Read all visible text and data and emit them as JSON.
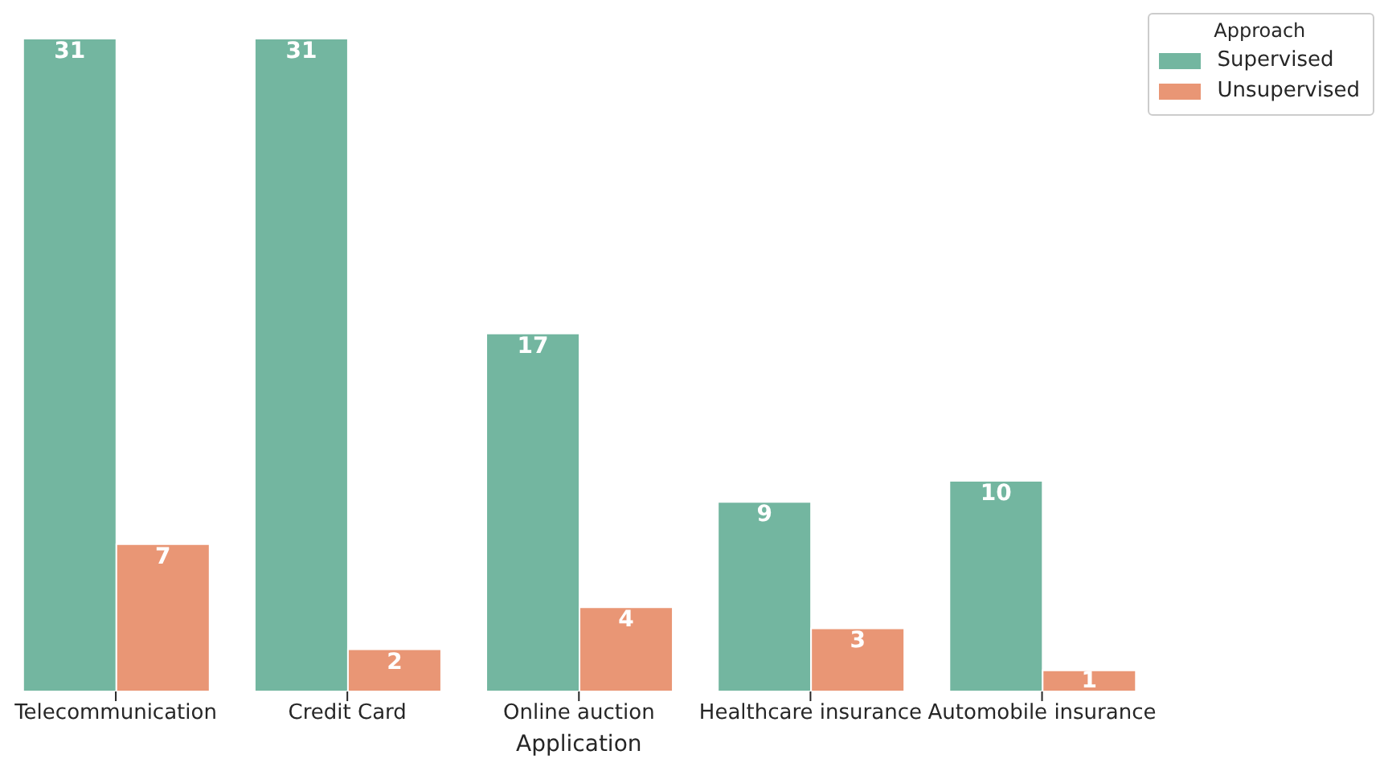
{
  "chart_data": {
    "type": "bar",
    "xlabel": "Application",
    "legend_title": "Approach",
    "categories": [
      "Telecommunication",
      "Credit Card",
      "Online auction",
      "Healthcare insurance",
      "Automobile insurance"
    ],
    "series": [
      {
        "name": "Supervised",
        "color": "#73b6a0",
        "values": [
          31,
          31,
          17,
          9,
          10
        ]
      },
      {
        "name": "Unsupervised",
        "color": "#e99675",
        "values": [
          7,
          2,
          4,
          3,
          1
        ]
      }
    ],
    "data_labels": true,
    "legend": "top right"
  }
}
